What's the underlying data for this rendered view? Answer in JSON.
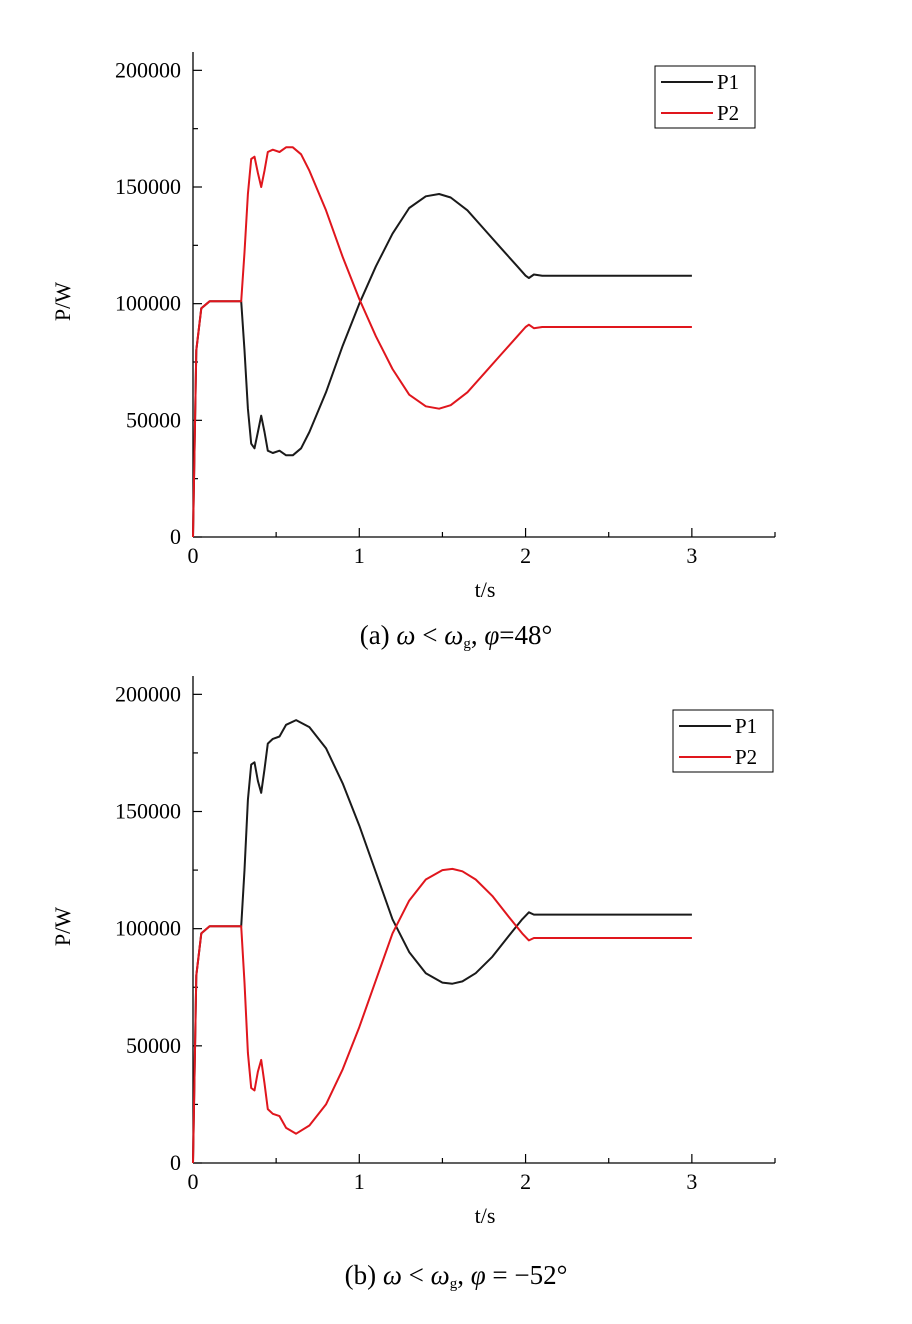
{
  "chart_data": [
    {
      "type": "line",
      "title": "",
      "xlabel": "t/s",
      "ylabel": "P/W",
      "xlim": [
        0,
        3.5
      ],
      "ylim": [
        0,
        200000
      ],
      "xticks": [
        0,
        1,
        2,
        3
      ],
      "yticks": [
        0,
        50000,
        100000,
        150000,
        200000
      ],
      "grid": false,
      "legend_position": "top-right",
      "caption": {
        "prefix": "(a) ",
        "omega": "ω",
        "lt": " < ",
        "omega_g": "ω",
        "sub": "g",
        "sep": ", ",
        "phi": "φ",
        "value": "=48°"
      },
      "series": [
        {
          "name": "P1",
          "color": "#1a1a1a",
          "x": [
            0,
            0.02,
            0.05,
            0.1,
            0.2,
            0.29,
            0.31,
            0.33,
            0.35,
            0.37,
            0.39,
            0.41,
            0.43,
            0.45,
            0.48,
            0.52,
            0.56,
            0.6,
            0.65,
            0.7,
            0.8,
            0.9,
            1.0,
            1.1,
            1.2,
            1.3,
            1.4,
            1.48,
            1.55,
            1.65,
            1.75,
            1.85,
            1.95,
            2.0,
            2.02,
            2.05,
            2.1,
            2.2,
            2.5,
            2.8,
            3.0
          ],
          "values": [
            0,
            80000,
            98000,
            101000,
            101000,
            101000,
            80000,
            55000,
            40000,
            38000,
            45000,
            52000,
            45000,
            37000,
            36000,
            37000,
            35000,
            35000,
            38000,
            45000,
            62000,
            82000,
            100000,
            116000,
            130000,
            141000,
            146000,
            147000,
            145500,
            140000,
            132000,
            124000,
            116000,
            112000,
            111000,
            112500,
            112000,
            112000,
            112000,
            112000,
            112000
          ]
        },
        {
          "name": "P2",
          "color": "#e0161d",
          "x": [
            0,
            0.02,
            0.05,
            0.1,
            0.2,
            0.29,
            0.31,
            0.33,
            0.35,
            0.37,
            0.39,
            0.41,
            0.43,
            0.45,
            0.48,
            0.52,
            0.56,
            0.6,
            0.65,
            0.7,
            0.8,
            0.9,
            1.0,
            1.1,
            1.2,
            1.3,
            1.4,
            1.48,
            1.55,
            1.65,
            1.75,
            1.85,
            1.95,
            2.0,
            2.02,
            2.05,
            2.1,
            2.2,
            2.5,
            2.8,
            3.0
          ],
          "values": [
            0,
            80000,
            98000,
            101000,
            101000,
            101000,
            122000,
            147000,
            162000,
            163000,
            156000,
            150000,
            157000,
            165000,
            166000,
            165000,
            167000,
            167000,
            164000,
            157000,
            140000,
            120000,
            102000,
            86000,
            72000,
            61000,
            56000,
            55000,
            56500,
            62000,
            70000,
            78000,
            86000,
            90000,
            91000,
            89500,
            90000,
            90000,
            90000,
            90000,
            90000
          ]
        }
      ]
    },
    {
      "type": "line",
      "title": "",
      "xlabel": "t/s",
      "ylabel": "P/W",
      "xlim": [
        0,
        3.5
      ],
      "ylim": [
        0,
        200000
      ],
      "xticks": [
        0,
        1,
        2,
        3
      ],
      "yticks": [
        0,
        50000,
        100000,
        150000,
        200000
      ],
      "grid": false,
      "legend_position": "top-right",
      "caption": {
        "prefix": "(b) ",
        "omega": "ω",
        "lt": " < ",
        "omega_g": "ω",
        "sub": "g",
        "sep": ", ",
        "phi": "φ",
        "value": " = −52°"
      },
      "series": [
        {
          "name": "P1",
          "color": "#1a1a1a",
          "x": [
            0,
            0.02,
            0.05,
            0.1,
            0.2,
            0.29,
            0.31,
            0.33,
            0.35,
            0.37,
            0.39,
            0.41,
            0.43,
            0.45,
            0.48,
            0.52,
            0.56,
            0.62,
            0.7,
            0.8,
            0.9,
            1.0,
            1.1,
            1.2,
            1.3,
            1.4,
            1.5,
            1.56,
            1.62,
            1.7,
            1.8,
            1.9,
            1.98,
            2.02,
            2.05,
            2.1,
            2.2,
            2.5,
            2.8,
            3.0
          ],
          "values": [
            0,
            80000,
            98000,
            101000,
            101000,
            101000,
            125000,
            155000,
            170000,
            171000,
            163000,
            158000,
            168000,
            179000,
            181000,
            182000,
            187000,
            189000,
            186000,
            177000,
            162000,
            144000,
            124000,
            104000,
            90000,
            81000,
            77000,
            76500,
            77500,
            81000,
            88000,
            97000,
            104000,
            107000,
            106000,
            106000,
            106000,
            106000,
            106000,
            106000
          ]
        },
        {
          "name": "P2",
          "color": "#e0161d",
          "x": [
            0,
            0.02,
            0.05,
            0.1,
            0.2,
            0.29,
            0.31,
            0.33,
            0.35,
            0.37,
            0.39,
            0.41,
            0.43,
            0.45,
            0.48,
            0.52,
            0.56,
            0.62,
            0.7,
            0.8,
            0.9,
            1.0,
            1.1,
            1.2,
            1.3,
            1.4,
            1.5,
            1.56,
            1.62,
            1.7,
            1.8,
            1.9,
            1.98,
            2.02,
            2.05,
            2.1,
            2.2,
            2.5,
            2.8,
            3.0
          ],
          "values": [
            0,
            80000,
            98000,
            101000,
            101000,
            101000,
            77000,
            47000,
            32000,
            31000,
            39000,
            44000,
            34000,
            23000,
            21000,
            20000,
            15000,
            12500,
            16000,
            25000,
            40000,
            58000,
            78000,
            98000,
            112000,
            121000,
            125000,
            125500,
            124500,
            121000,
            114000,
            105000,
            98000,
            95000,
            96000,
            96000,
            96000,
            96000,
            96000,
            96000
          ]
        }
      ]
    }
  ]
}
